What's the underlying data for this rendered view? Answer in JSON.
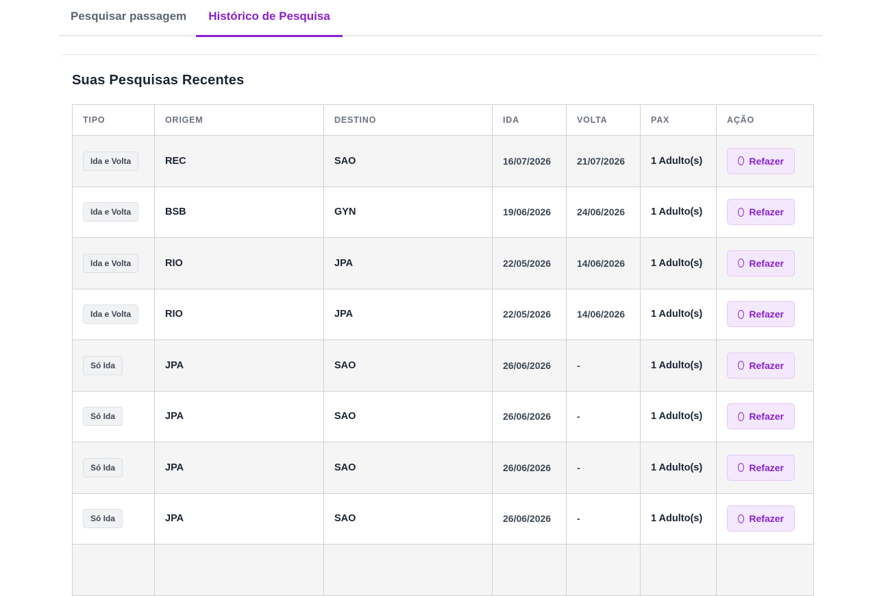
{
  "tabs": [
    "Pesquisar passagem",
    "Histórico de Pesquisa"
  ],
  "section_title": "Suas Pesquisas Recentes",
  "table": {
    "headers": [
      "TIPO",
      "ORIGEM",
      "DESTINO",
      "IDA",
      "VOLTA",
      "PAX",
      "AÇÃO"
    ],
    "rows": [
      [
        "Ida e Volta",
        "REC",
        "SAO",
        "16/07/2026",
        "21/07/2026",
        "1 Adulto(s)",
        "Refazer"
      ],
      [
        "Ida e Volta",
        "BSB",
        "GYN",
        "19/06/2026",
        "24/06/2026",
        "1 Adulto(s)",
        "Refazer"
      ],
      [
        "Ida e Volta",
        "RIO",
        "JPA",
        "22/05/2026",
        "14/06/2026",
        "1 Adulto(s)",
        "Refazer"
      ],
      [
        "Ida e Volta",
        "RIO",
        "JPA",
        "22/05/2026",
        "14/06/2026",
        "1 Adulto(s)",
        "Refazer"
      ],
      [
        "Só Ida",
        "JPA",
        "SAO",
        "26/06/2026",
        "-",
        "1 Adulto(s)",
        "Refazer"
      ],
      [
        "Só Ida",
        "JPA",
        "SAO",
        "26/06/2026",
        "-",
        "1 Adulto(s)",
        "Refazer"
      ],
      [
        "Só Ida",
        "JPA",
        "SAO",
        "26/06/2026",
        "-",
        "1 Adulto(s)",
        "Refazer"
      ],
      [
        "Só Ida",
        "JPA",
        "SAO",
        "26/06/2026",
        "-",
        "1 Adulto(s)",
        "Refazer"
      ]
    ]
  }
}
